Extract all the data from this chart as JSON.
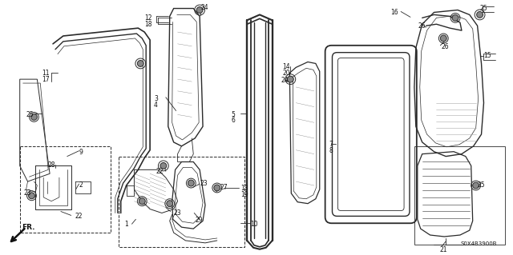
{
  "diagram_code": "S0X4B3900B",
  "background_color": "#ffffff",
  "fig_width": 6.4,
  "fig_height": 3.19,
  "dpi": 100,
  "line_color": "#2a2a2a",
  "lw": 0.7
}
